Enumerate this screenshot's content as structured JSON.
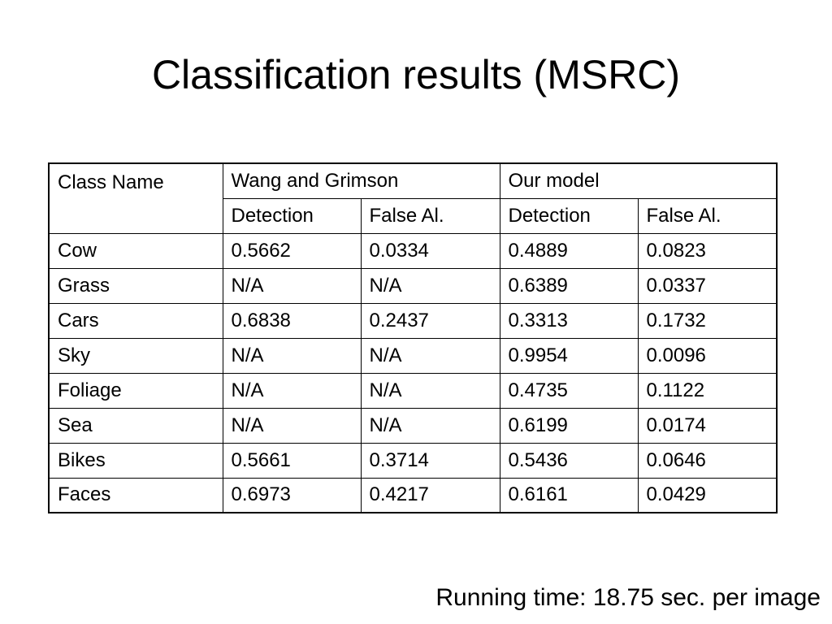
{
  "slide": {
    "title": "Classification results (MSRC)",
    "footer": "Running time: 18.75 sec. per image"
  },
  "table": {
    "header": {
      "class_name": "Class Name",
      "group1": "Wang and Grimson",
      "group2": "Our model",
      "sub": [
        "Detection",
        "False Al.",
        "Detection",
        "False Al."
      ]
    },
    "rows": [
      [
        "Cow",
        "0.5662",
        "0.0334",
        "0.4889",
        "0.0823"
      ],
      [
        "Grass",
        "N/A",
        "N/A",
        "0.6389",
        "0.0337"
      ],
      [
        "Cars",
        "0.6838",
        "0.2437",
        "0.3313",
        "0.1732"
      ],
      [
        "Sky",
        "N/A",
        "N/A",
        "0.9954",
        "0.0096"
      ],
      [
        "Foliage",
        "N/A",
        "N/A",
        "0.4735",
        "0.1122"
      ],
      [
        "Sea",
        "N/A",
        "N/A",
        "0.6199",
        "0.0174"
      ],
      [
        "Bikes",
        "0.5661",
        "0.3714",
        "0.5436",
        "0.0646"
      ],
      [
        "Faces",
        "0.6973",
        "0.4217",
        "0.6161",
        "0.0429"
      ]
    ]
  }
}
